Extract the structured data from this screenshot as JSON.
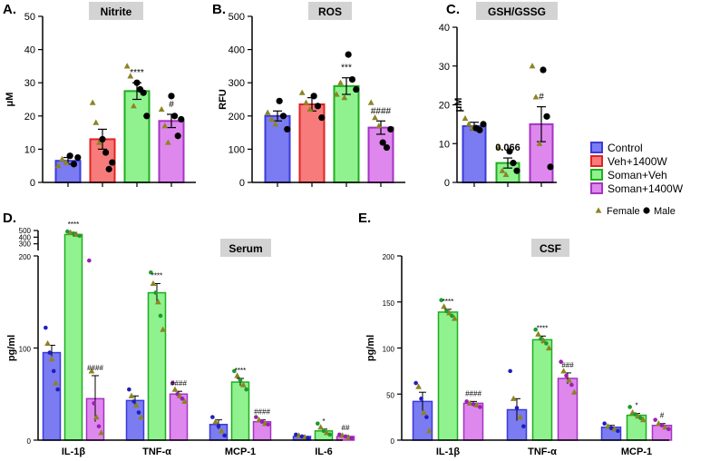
{
  "colors": {
    "control_fill": "#7b7bf2",
    "control_stroke": "#3b3bd9",
    "veh_fill": "#f77b7b",
    "veh_stroke": "#e32222",
    "soman_fill": "#8ff28f",
    "soman_stroke": "#1fae1f",
    "s1400_fill": "#de88ee",
    "s1400_stroke": "#a633c4",
    "female_marker": "#8c8424",
    "male_marker": "#000000",
    "title_box": "#d3d3d3"
  },
  "legend": {
    "groups": [
      {
        "label": "Control",
        "fill": "#7b7bf2",
        "stroke": "#3b3bd9"
      },
      {
        "label": "Veh+1400W",
        "fill": "#f77b7b",
        "stroke": "#e32222"
      },
      {
        "label": "Soman+Veh",
        "fill": "#8ff28f",
        "stroke": "#1fae1f"
      },
      {
        "label": "Soman+1400W",
        "fill": "#de88ee",
        "stroke": "#a633c4"
      }
    ],
    "female_label": "Female",
    "male_label": "Male"
  },
  "chart_data": [
    {
      "id": "A",
      "panel_label": "A.",
      "type": "bar",
      "title": "Nitrite",
      "ylabel": "μM",
      "ylim": [
        0,
        50
      ],
      "yticks": [
        "0",
        "10",
        "20",
        "30",
        "40",
        "50"
      ],
      "categories": [
        "Control",
        "Veh+1400W",
        "Soman+Veh",
        "Soman+1400W"
      ],
      "values": [
        6.5,
        13,
        27.5,
        18.5
      ],
      "errors": [
        1,
        3,
        2.5,
        2
      ],
      "annotations": [
        "",
        "",
        "****",
        "#"
      ],
      "points": [
        [
          {
            "v": 5,
            "s": "f"
          },
          {
            "v": 7,
            "s": "f"
          },
          {
            "v": 6,
            "s": "f"
          },
          {
            "v": 8,
            "s": "m"
          },
          {
            "v": 5.5,
            "s": "m"
          },
          {
            "v": 7.5,
            "s": "m"
          }
        ],
        [
          {
            "v": 24,
            "s": "f"
          },
          {
            "v": 18,
            "s": "f"
          },
          {
            "v": 12,
            "s": "f"
          },
          {
            "v": 13,
            "s": "m"
          },
          {
            "v": 9,
            "s": "m"
          },
          {
            "v": 4,
            "s": "m"
          },
          {
            "v": 6,
            "s": "m"
          }
        ],
        [
          {
            "v": 35,
            "s": "f"
          },
          {
            "v": 32,
            "s": "f"
          },
          {
            "v": 23,
            "s": "f"
          },
          {
            "v": 30,
            "s": "m"
          },
          {
            "v": 28,
            "s": "m"
          },
          {
            "v": 27,
            "s": "m"
          },
          {
            "v": 20,
            "s": "m"
          }
        ],
        [
          {
            "v": 22,
            "s": "f"
          },
          {
            "v": 17,
            "s": "f"
          },
          {
            "v": 12,
            "s": "f"
          },
          {
            "v": 26,
            "s": "m"
          },
          {
            "v": 20,
            "s": "m"
          },
          {
            "v": 14,
            "s": "m"
          },
          {
            "v": 19,
            "s": "m"
          }
        ]
      ]
    },
    {
      "id": "B",
      "panel_label": "B.",
      "type": "bar",
      "title": "ROS",
      "ylabel": "RFU",
      "ylim": [
        0,
        500
      ],
      "yticks": [
        "0",
        "100",
        "200",
        "300",
        "400",
        "500"
      ],
      "categories": [
        "Control",
        "Veh+1400W",
        "Soman+Veh",
        "Soman+1400W"
      ],
      "values": [
        200,
        235,
        290,
        165
      ],
      "errors": [
        15,
        20,
        25,
        20
      ],
      "annotations": [
        "",
        "",
        "***",
        "####"
      ],
      "points": [
        [
          {
            "v": 210,
            "s": "f"
          },
          {
            "v": 190,
            "s": "f"
          },
          {
            "v": 175,
            "s": "f"
          },
          {
            "v": 245,
            "s": "m"
          },
          {
            "v": 200,
            "s": "m"
          },
          {
            "v": 160,
            "s": "m"
          }
        ],
        [
          {
            "v": 270,
            "s": "f"
          },
          {
            "v": 240,
            "s": "f"
          },
          {
            "v": 220,
            "s": "f"
          },
          {
            "v": 260,
            "s": "m"
          },
          {
            "v": 230,
            "s": "m"
          },
          {
            "v": 195,
            "s": "m"
          }
        ],
        [
          {
            "v": 265,
            "s": "f"
          },
          {
            "v": 300,
            "s": "f"
          },
          {
            "v": 255,
            "s": "f"
          },
          {
            "v": 385,
            "s": "m"
          },
          {
            "v": 310,
            "s": "m"
          },
          {
            "v": 280,
            "s": "m"
          }
        ],
        [
          {
            "v": 240,
            "s": "f"
          },
          {
            "v": 195,
            "s": "f"
          },
          {
            "v": 170,
            "s": "f"
          },
          {
            "v": 120,
            "s": "m"
          },
          {
            "v": 105,
            "s": "m"
          },
          {
            "v": 160,
            "s": "m"
          }
        ]
      ]
    },
    {
      "id": "C",
      "panel_label": "C.",
      "type": "bar",
      "title": "GSH/GSSG",
      "ylabel": "μM",
      "ylim": [
        0,
        40
      ],
      "yticks": [
        "0",
        "10",
        "20",
        "30",
        "40"
      ],
      "categories": [
        "Control",
        "Soman+Veh",
        "Soman+1400W"
      ],
      "values": [
        14.5,
        5,
        15
      ],
      "errors": [
        1,
        1.3,
        4.5
      ],
      "annotations": [
        "",
        "0.066",
        "#"
      ],
      "points": [
        [
          {
            "v": 16.5,
            "s": "f"
          },
          {
            "v": 15,
            "s": "f"
          },
          {
            "v": 14,
            "s": "f"
          },
          {
            "v": 14,
            "s": "m"
          },
          {
            "v": 13.5,
            "s": "m"
          },
          {
            "v": 15,
            "s": "m"
          }
        ],
        [
          {
            "v": 9,
            "s": "f"
          },
          {
            "v": 3,
            "s": "f"
          },
          {
            "v": 2,
            "s": "f"
          },
          {
            "v": 8,
            "s": "m"
          },
          {
            "v": 5,
            "s": "m"
          },
          {
            "v": 3,
            "s": "m"
          }
        ],
        [
          {
            "v": 30,
            "s": "f"
          },
          {
            "v": 22,
            "s": "f"
          },
          {
            "v": 10,
            "s": "f"
          },
          {
            "v": 29,
            "s": "m"
          },
          {
            "v": 17,
            "s": "m"
          },
          {
            "v": 4,
            "s": "m"
          }
        ]
      ]
    },
    {
      "id": "D",
      "panel_label": "D.",
      "type": "bar",
      "title": "Serum",
      "ylabel": "pg/ml",
      "ylim": [
        0,
        200
      ],
      "yticks": [
        "0",
        "100",
        "200"
      ],
      "upper_ticks": [
        "300",
        "400",
        "500"
      ],
      "axis_break": true,
      "break_range": [
        200,
        500
      ],
      "categories": [
        "IL-1β",
        "TNF-α",
        "MCP-1",
        "IL-6"
      ],
      "series": [
        {
          "name": "Control",
          "values": [
            95,
            43,
            17,
            4
          ],
          "errors": [
            8,
            5,
            5,
            1
          ]
        },
        {
          "name": "Soman+Veh",
          "values": [
            440,
            160,
            63,
            10
          ],
          "errors": [
            30,
            10,
            4,
            2
          ]
        },
        {
          "name": "Soman+1400W",
          "values": [
            45,
            50,
            20,
            4
          ],
          "errors": [
            25,
            3,
            2,
            1
          ]
        }
      ],
      "annotations": [
        [
          "",
          "****",
          "####"
        ],
        [
          "",
          "****",
          "####"
        ],
        [
          "",
          "****",
          "####"
        ],
        [
          "",
          "*",
          "##"
        ]
      ],
      "points": [
        [
          [
            122,
            105,
            95,
            88,
            75,
            62,
            55
          ],
          [
            485,
            470,
            455,
            440,
            420
          ],
          [
            195,
            75,
            40,
            25,
            15,
            8
          ]
        ],
        [
          [
            55,
            48,
            42,
            38,
            30,
            25
          ],
          [
            182,
            170,
            160,
            150,
            135,
            120
          ],
          [
            62,
            55,
            50,
            48,
            45,
            42
          ]
        ],
        [
          [
            25,
            20,
            15,
            10,
            5
          ],
          [
            75,
            70,
            65,
            60,
            55
          ],
          [
            25,
            22,
            20,
            18,
            17
          ]
        ],
        [
          [
            6,
            5,
            4,
            3,
            2
          ],
          [
            18,
            14,
            10,
            8,
            6
          ],
          [
            6,
            5,
            4,
            3,
            2
          ]
        ]
      ]
    },
    {
      "id": "E",
      "panel_label": "E.",
      "type": "bar",
      "title": "CSF",
      "ylabel": "pg/ml",
      "ylim": [
        0,
        200
      ],
      "yticks": [
        "0",
        "50",
        "100",
        "150",
        "200"
      ],
      "categories": [
        "IL-1β",
        "TNF-α",
        "MCP-1"
      ],
      "series": [
        {
          "name": "Control",
          "values": [
            42,
            33,
            14
          ],
          "errors": [
            10,
            12,
            2
          ]
        },
        {
          "name": "Soman+Veh",
          "values": [
            139,
            109,
            27
          ],
          "errors": [
            3,
            4,
            2
          ]
        },
        {
          "name": "Soman+1400W",
          "values": [
            40,
            67,
            16
          ],
          "errors": [
            2,
            6,
            2
          ]
        }
      ],
      "annotations": [
        [
          "",
          "****",
          "####"
        ],
        [
          "",
          "****",
          "###"
        ],
        [
          "",
          "*",
          "#"
        ]
      ],
      "points": [
        [
          [
            62,
            58,
            45,
            30,
            25,
            10
          ],
          [
            152,
            145,
            140,
            138,
            135,
            132
          ],
          [
            42,
            40,
            39,
            38,
            36
          ]
        ],
        [
          [
            75,
            45,
            35,
            25,
            15
          ],
          [
            120,
            115,
            110,
            108,
            105,
            100
          ],
          [
            85,
            75,
            70,
            65,
            60,
            52
          ]
        ],
        [
          [
            18,
            15,
            13,
            12,
            10
          ],
          [
            36,
            30,
            28,
            26,
            24,
            22
          ],
          [
            22,
            18,
            16,
            14,
            12
          ]
        ]
      ]
    }
  ]
}
